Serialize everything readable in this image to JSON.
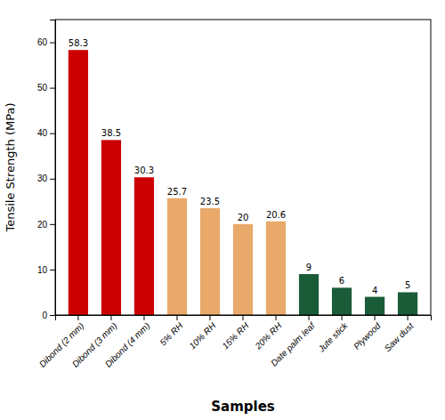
{
  "chart_data": {
    "type": "bar",
    "categories": [
      "Dibond (2 mm)",
      "Dibond (3 mm)",
      "Dibond (4 mm)",
      "5% RH",
      "10% RH",
      "15% RH",
      "20% RH",
      "Date palm leaf",
      "Jute stick",
      "Plywood",
      "Saw dust"
    ],
    "values": [
      58.3,
      38.5,
      30.3,
      25.7,
      23.5,
      20,
      20.6,
      9,
      6,
      4,
      5
    ],
    "colors": [
      "#cc0000",
      "#cc0000",
      "#cc0000",
      "#e8a96a",
      "#e8a96a",
      "#e8a96a",
      "#e8a96a",
      "#1a5c38",
      "#1a5c38",
      "#1a5c38",
      "#1a5c38"
    ],
    "xlabel": "Samples",
    "ylabel": "Tensile Strength (MPa)",
    "ylim": [
      0,
      65
    ],
    "yticks": [
      0,
      10,
      20,
      30,
      40,
      50,
      60
    ],
    "data_labels": true,
    "grid": false
  }
}
